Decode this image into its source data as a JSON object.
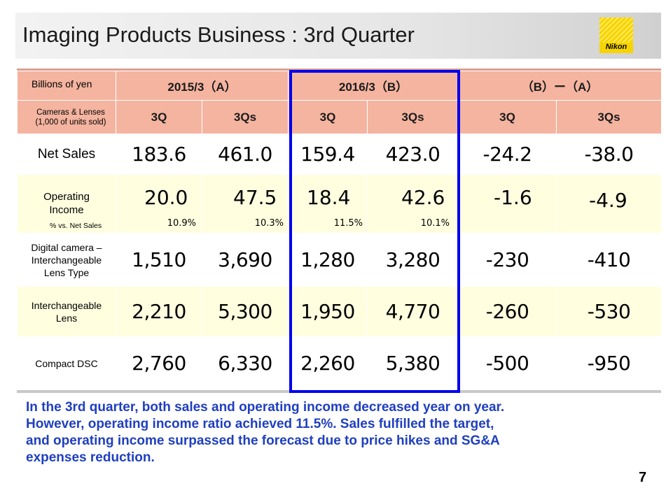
{
  "slide": {
    "title": "Imaging Products Business : 3rd Quarter",
    "logo_text": "Nikon",
    "page_number": "7"
  },
  "table": {
    "units_label": "Billions of yen",
    "units_sub_label_line1": "Cameras & Lenses",
    "units_sub_label_line2": "(1,000 of units sold)",
    "period_headers": [
      "2015/3（A）",
      "2016/3（B）",
      "（B）ー（A）"
    ],
    "sub_headers": [
      "3Q",
      "3Qs",
      "3Q",
      "3Qs",
      "3Q",
      "3Qs"
    ],
    "rows": {
      "net_sales": {
        "label": "Net Sales",
        "values": [
          "183.6",
          "461.0",
          "159.4",
          "423.0",
          "-24.2",
          "-38.0"
        ]
      },
      "operating_income": {
        "label_line1": "Operating",
        "label_line2": "Income",
        "sub_label": "% vs. Net Sales",
        "values": [
          "20.0",
          "47.5",
          "18.4",
          "42.6",
          "-1.6",
          "-4.9"
        ],
        "percents": [
          "10.9%",
          "10.3%",
          "11.5%",
          "10.1%"
        ]
      },
      "digital_camera": {
        "label_line1": "Digital camera –",
        "label_line2": "Interchangeable",
        "label_line3": "Lens Type",
        "values": [
          "1,510",
          "3,690",
          "1,280",
          "3,280",
          "-230",
          "-410"
        ]
      },
      "interchangeable_lens": {
        "label_line1": "Interchangeable",
        "label_line2": "Lens",
        "values": [
          "2,210",
          "5,300",
          "1,950",
          "4,770",
          "-260",
          "-530"
        ]
      },
      "compact_dsc": {
        "label": "Compact DSC",
        "values": [
          "2,760",
          "6,330",
          "2,260",
          "5,380",
          "-500",
          "-950"
        ]
      }
    }
  },
  "summary": {
    "line1": "In the 3rd quarter, both sales and operating income decreased year on year.",
    "line2": "However,  operating income ratio achieved 11.5%. Sales fulfilled the target,",
    "line3": "and operating income surpassed the forecast due to price hikes and SG&A",
    "line4": "expenses reduction."
  },
  "colors": {
    "header_fill": "#f4b4a0",
    "highlight_border": "#0000ee",
    "summary_text": "#1f3fbf",
    "cream_row": "#ffffe0"
  }
}
